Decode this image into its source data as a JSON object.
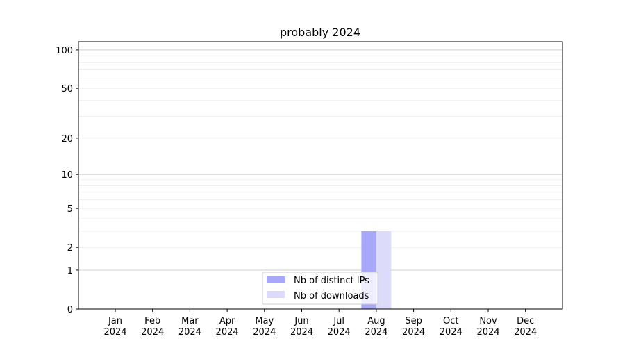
{
  "chart_data": {
    "type": "bar",
    "title": "probably 2024",
    "xlabel": "",
    "ylabel": "",
    "y_scale": "symlog (log10(v+1))",
    "ylim": [
      0,
      116
    ],
    "y_ticks": [
      0,
      1,
      2,
      5,
      10,
      20,
      50,
      100
    ],
    "y_tick_labels": [
      "0",
      "1",
      "2",
      "5",
      "10",
      "20",
      "50",
      "100"
    ],
    "x_tick_labels": [
      [
        "Jan",
        "2024"
      ],
      [
        "Feb",
        "2024"
      ],
      [
        "Mar",
        "2024"
      ],
      [
        "Apr",
        "2024"
      ],
      [
        "May",
        "2024"
      ],
      [
        "Jun",
        "2024"
      ],
      [
        "Jul",
        "2024"
      ],
      [
        "Aug",
        "2024"
      ],
      [
        "Sep",
        "2024"
      ],
      [
        "Oct",
        "2024"
      ],
      [
        "Nov",
        "2024"
      ],
      [
        "Dec",
        "2024"
      ]
    ],
    "grid": true,
    "legend_position": "lower-center",
    "categories": [
      "2024-08"
    ],
    "series": [
      {
        "name": "Nb of distinct IPs",
        "values": [
          3
        ],
        "color": "#a8a8fa"
      },
      {
        "name": "Nb of downloads",
        "values": [
          3
        ],
        "color": "#dcdcfa"
      }
    ]
  }
}
